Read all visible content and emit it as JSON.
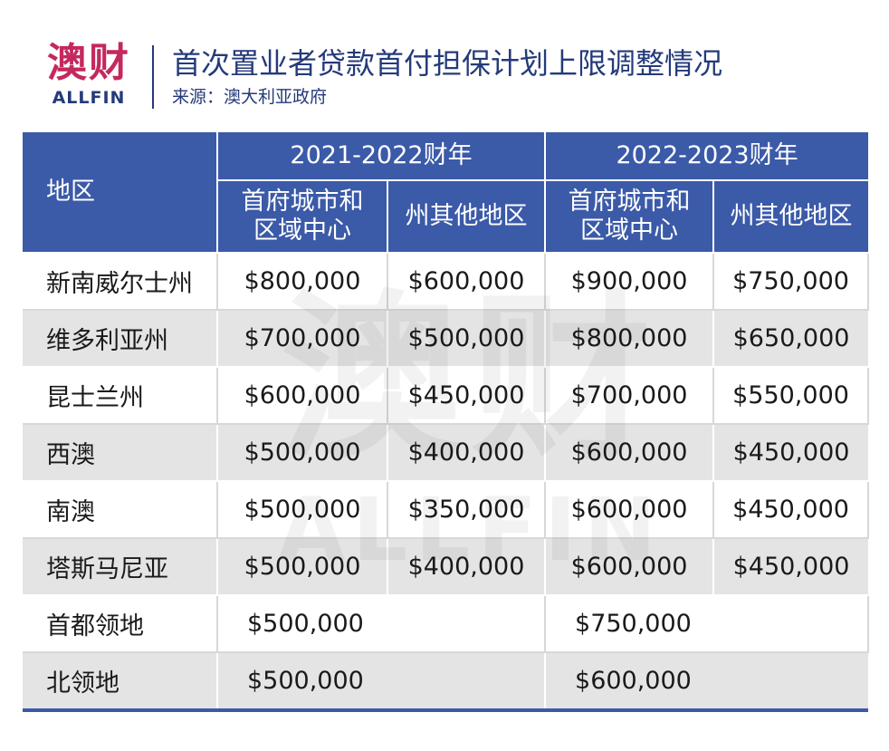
{
  "brand": {
    "logo_cn": "澳财",
    "logo_en": "ALLFIN"
  },
  "header": {
    "title": "首次置业者贷款首付担保计划上限调整情况",
    "source": "来源：澳大利亚政府"
  },
  "table": {
    "region_header": "地区",
    "groups": [
      "2021-2022财年",
      "2022-2023财年"
    ],
    "subheaders": [
      [
        "首府城市和",
        "区域中心"
      ],
      [
        "州其他地区"
      ],
      [
        "首府城市和",
        "区域中心"
      ],
      [
        "州其他地区"
      ]
    ],
    "rows": [
      {
        "region": "新南威尔士州",
        "values": [
          "$800,000",
          "$600,000",
          "$900,000",
          "$750,000"
        ]
      },
      {
        "region": "维多利亚州",
        "values": [
          "$700,000",
          "$500,000",
          "$800,000",
          "$650,000"
        ]
      },
      {
        "region": "昆士兰州",
        "values": [
          "$600,000",
          "$450,000",
          "$700,000",
          "$550,000"
        ]
      },
      {
        "region": "西澳",
        "values": [
          "$500,000",
          "$400,000",
          "$600,000",
          "$450,000"
        ]
      },
      {
        "region": "南澳",
        "values": [
          "$500,000",
          "$350,000",
          "$600,000",
          "$450,000"
        ]
      },
      {
        "region": "塔斯马尼亚",
        "values": [
          "$500,000",
          "$400,000",
          "$600,000",
          "$450,000"
        ]
      }
    ],
    "merged_rows": [
      {
        "region": "首都领地",
        "values": [
          "$500,000",
          "$750,000"
        ]
      },
      {
        "region": "北领地",
        "values": [
          "$500,000",
          "$600,000"
        ]
      }
    ]
  },
  "colors": {
    "header_bg": "#3b5aa8",
    "brand_pink": "#c4285e",
    "brand_navy": "#243a7a",
    "stripe": "#e4e4e4"
  }
}
